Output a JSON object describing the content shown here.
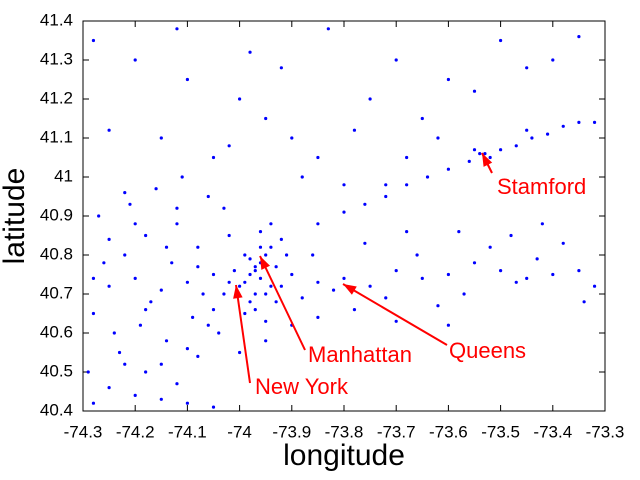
{
  "chart_data": {
    "type": "scatter",
    "x_label": "longitude",
    "y_label": "latitude",
    "xlim": [
      -74.3,
      -73.3
    ],
    "ylim": [
      40.4,
      41.4
    ],
    "xticks": [
      -74.3,
      -74.2,
      -74.1,
      -74,
      -73.9,
      -73.8,
      -73.7,
      -73.6,
      -73.5,
      -73.4,
      -73.3
    ],
    "yticks": [
      40.4,
      40.5,
      40.6,
      40.7,
      40.8,
      40.9,
      41,
      41.1,
      41.2,
      41.3,
      41.4
    ],
    "annotations": [
      "Stamford",
      "Manhattan",
      "Queens",
      "New York"
    ],
    "annotation_color": "#ff0000",
    "series": [
      {
        "color": "#0000ff",
        "x": [
          -73.98,
          -73.97,
          -73.96,
          -73.99,
          -74.0,
          -73.95,
          -73.94,
          -73.97,
          -73.98,
          -73.96,
          -73.93,
          -73.92,
          -73.99,
          -74.01,
          -73.95,
          -73.97,
          -73.94,
          -73.96,
          -73.98,
          -73.91,
          -74.02,
          -73.9,
          -73.93,
          -73.95,
          -73.99,
          -74.03,
          -73.96,
          -73.92,
          -73.97,
          -73.94,
          -73.85,
          -73.8,
          -73.75,
          -73.7,
          -73.65,
          -73.6,
          -73.55,
          -73.5,
          -73.45,
          -73.4,
          -73.35,
          -73.32,
          -73.88,
          -73.82,
          -73.78,
          -73.72,
          -73.66,
          -73.62,
          -73.57,
          -73.52,
          -73.47,
          -73.43,
          -73.38,
          -73.34,
          -73.86,
          -73.76,
          -73.68,
          -73.58,
          -73.48,
          -73.42,
          -73.85,
          -73.8,
          -73.76,
          -73.72,
          -73.68,
          -73.64,
          -73.6,
          -73.56,
          -73.53,
          -73.5,
          -73.47,
          -73.44,
          -73.41,
          -73.38,
          -73.35,
          -73.32,
          -73.54,
          -73.55,
          -73.52,
          -73.45,
          -74.25,
          -74.2,
          -74.15,
          -74.1,
          -74.05,
          -74.22,
          -74.18,
          -74.12,
          -74.08,
          -74.28,
          -74.24,
          -74.19,
          -74.14,
          -74.09,
          -74.04,
          -74.27,
          -74.21,
          -74.16,
          -74.11,
          -74.06,
          -74.26,
          -74.17,
          -74.13,
          -74.07,
          -74.02,
          -74.23,
          -74.15,
          -74.1,
          -74.05,
          -74.29,
          -74.2,
          -74.12,
          -74.08,
          -74.18,
          -74.25,
          -74.03,
          -74.14,
          -74.22,
          -74.06,
          -74.28,
          -74.28,
          -74.2,
          -74.1,
          -74.0,
          -73.95,
          -73.9,
          -73.85,
          -73.75,
          -73.7,
          -73.6,
          -73.5,
          -73.4,
          -74.15,
          -74.05,
          -73.8,
          -73.65,
          -73.55,
          -73.45,
          -74.25,
          -73.98,
          -73.88,
          -73.78,
          -73.68,
          -74.12,
          -73.92,
          -73.83,
          -73.35,
          -74.02,
          -73.72,
          -73.62,
          -74.2,
          -74.15,
          -74.1,
          -74.05,
          -74.25,
          -74.0,
          -73.95,
          -74.18,
          -74.12,
          -74.28,
          -74.22,
          -73.9,
          -74.08,
          -73.85,
          -73.7,
          -73.6
        ],
        "values": [
          40.75,
          40.76,
          40.78,
          40.73,
          40.72,
          40.8,
          40.82,
          40.7,
          40.68,
          40.74,
          40.77,
          40.84,
          40.8,
          40.76,
          40.7,
          40.66,
          40.72,
          40.86,
          40.79,
          40.8,
          40.73,
          40.75,
          40.68,
          40.63,
          40.65,
          40.7,
          40.82,
          40.72,
          40.77,
          40.88,
          40.73,
          40.74,
          40.72,
          40.76,
          40.74,
          40.75,
          40.78,
          40.76,
          40.74,
          40.75,
          40.76,
          40.72,
          40.69,
          40.71,
          40.66,
          40.69,
          40.8,
          40.67,
          40.7,
          40.82,
          40.73,
          40.79,
          40.83,
          40.68,
          40.8,
          40.83,
          40.86,
          40.86,
          40.85,
          40.88,
          40.88,
          40.91,
          40.93,
          40.95,
          40.98,
          41.0,
          41.02,
          41.04,
          41.06,
          41.07,
          41.08,
          41.1,
          41.11,
          41.13,
          41.14,
          41.14,
          41.06,
          41.07,
          41.05,
          41.12,
          40.72,
          40.74,
          40.71,
          40.73,
          40.75,
          40.8,
          40.85,
          40.88,
          40.82,
          40.65,
          40.6,
          40.62,
          40.58,
          40.64,
          40.6,
          40.9,
          40.93,
          40.97,
          41.0,
          40.95,
          40.78,
          40.68,
          40.78,
          40.7,
          40.85,
          40.55,
          40.52,
          40.56,
          40.66,
          40.5,
          40.88,
          40.92,
          40.77,
          40.66,
          40.84,
          40.92,
          40.82,
          40.96,
          40.62,
          40.74,
          41.35,
          41.3,
          41.25,
          41.2,
          41.15,
          41.1,
          41.05,
          41.2,
          41.3,
          41.25,
          41.35,
          41.3,
          41.1,
          41.05,
          40.98,
          41.15,
          41.22,
          41.28,
          41.12,
          41.32,
          41.0,
          41.12,
          41.05,
          41.38,
          41.28,
          41.38,
          41.36,
          41.08,
          40.98,
          41.1,
          40.44,
          40.43,
          40.42,
          40.41,
          40.46,
          40.55,
          40.58,
          40.5,
          40.47,
          40.42,
          40.52,
          40.62,
          40.54,
          40.64,
          40.63,
          40.62
        ]
      }
    ]
  }
}
